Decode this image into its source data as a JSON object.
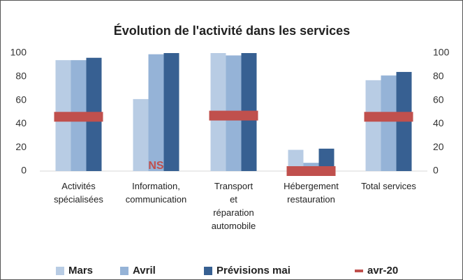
{
  "chart_data": {
    "type": "bar",
    "title": "Évolution de l'activité dans les services",
    "categories": [
      [
        "Activités",
        "spécialisées"
      ],
      [
        "Information,",
        "communication"
      ],
      [
        "Transport",
        "et",
        "réparation",
        "automobile"
      ],
      [
        "Hébergement",
        "restauration"
      ],
      [
        "Total services"
      ]
    ],
    "series": [
      {
        "name": "Mars",
        "color": "#b8cce4",
        "style": "bar",
        "values": [
          94,
          61,
          100,
          18,
          77
        ]
      },
      {
        "name": "Avril",
        "color": "#95b3d7",
        "style": "bar",
        "values": [
          94,
          99,
          98,
          7,
          81
        ]
      },
      {
        "name": "Prévisions mai",
        "color": "#376092",
        "style": "bar",
        "values": [
          96,
          100,
          100,
          19,
          84
        ]
      },
      {
        "name": "avr-20",
        "color": "#c0504d",
        "style": "marker",
        "values": [
          46,
          null,
          47,
          0,
          46
        ]
      }
    ],
    "annotations": [
      {
        "text": "NS",
        "category": 1,
        "color": "#c0504d"
      }
    ],
    "ylim": [
      0,
      100
    ],
    "yticks": [
      0,
      20,
      40,
      60,
      80,
      100
    ],
    "y2lim": [
      0,
      100
    ],
    "y2ticks": [
      0,
      20,
      40,
      60,
      80,
      100
    ],
    "grid": false,
    "legend": "bottom"
  }
}
